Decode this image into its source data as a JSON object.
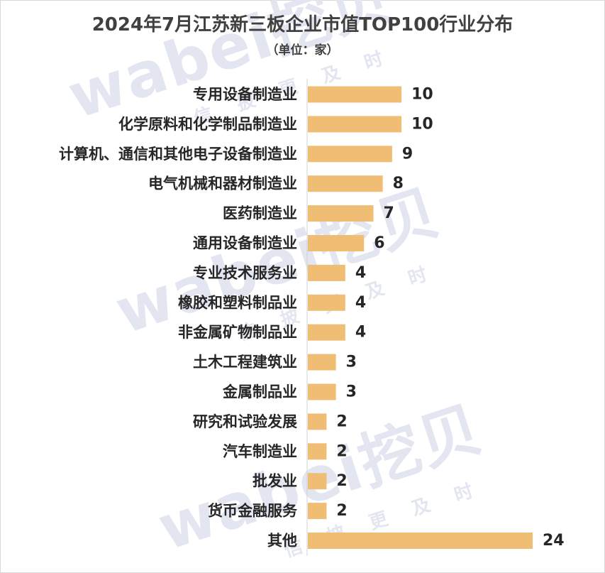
{
  "chart_data": {
    "type": "bar",
    "orientation": "horizontal",
    "title": "2024年7月江苏新三板企业市值TOP100行业分布",
    "subtitle": "（单位：家）",
    "categories": [
      "专用设备制造业",
      "化学原料和化学制品制造业",
      "计算机、通信和其他电子设备制造业",
      "电气机械和器材制造业",
      "医药制造业",
      "通用设备制造业",
      "专业技术服务业",
      "橡胶和塑料制品业",
      "非金属矿物制品业",
      "土木工程建筑业",
      "金属制品业",
      "研究和试验发展",
      "汽车制造业",
      "批发业",
      "货币金融服务",
      "其他"
    ],
    "values": [
      10,
      10,
      9,
      8,
      7,
      6,
      4,
      4,
      4,
      3,
      3,
      2,
      2,
      2,
      2,
      24
    ],
    "xlim": [
      0,
      24
    ],
    "bar_color": "#f0bd75",
    "axis_color": "#d0d0d0",
    "data_labels": true,
    "grid": false,
    "legend": "none"
  },
  "watermark": {
    "brand": "wabei挖贝",
    "tagline": "信 披 更 及 时"
  }
}
